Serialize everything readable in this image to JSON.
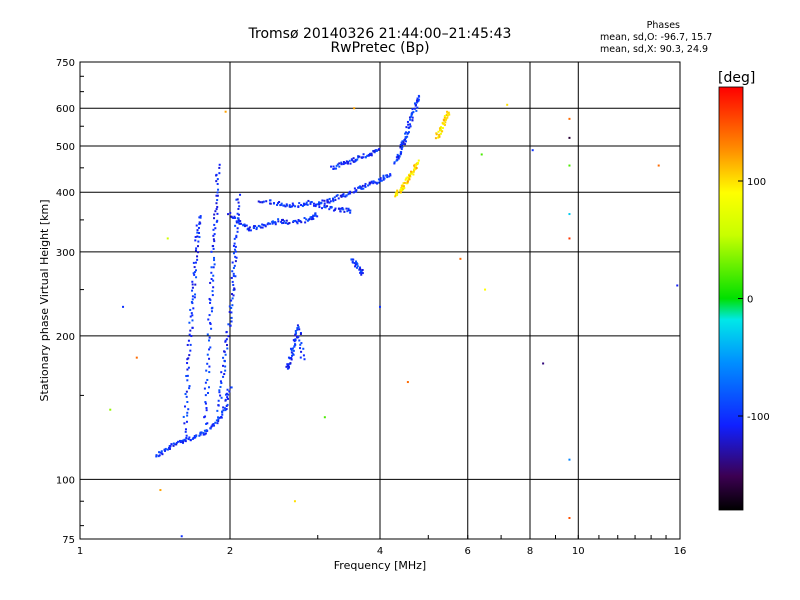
{
  "header": {
    "title_line1": "Tromsø 20140326 21:44:00–21:45:43",
    "title_line2": "RwPretec (Bp)"
  },
  "phase_box": {
    "heading": "Phases",
    "line_o": "mean, sd,O: -96.7, 15.7",
    "line_x": "mean, sd,X:  90.3, 24.9"
  },
  "colorbar": {
    "unit": "[deg]",
    "ticks": [
      "100",
      "0",
      "-100"
    ],
    "range": [
      -180,
      180
    ]
  },
  "chart_data": {
    "type": "scatter",
    "xlabel": "Frequency [MHz]",
    "ylabel": "Stationary phase Virtual Height [km]",
    "xscale": "log",
    "yscale": "log",
    "xlim": [
      1,
      16
    ],
    "ylim": [
      75,
      750
    ],
    "xticks": [
      1,
      2,
      4,
      6,
      8,
      10,
      16
    ],
    "yticks": [
      75,
      100,
      200,
      300,
      400,
      500,
      600,
      750
    ],
    "grid": true,
    "series": [
      {
        "segments": [
          {
            "x": [
              1.42,
              1.5,
              1.58,
              1.68,
              1.78,
              1.88,
              1.96,
              2.0
            ],
            "y": [
              112,
              116,
              120,
              122,
              125,
              132,
              142,
              158
            ]
          },
          {
            "x": [
              1.62,
              1.64,
              1.66,
              1.68,
              1.7,
              1.72,
              1.74
            ],
            "y": [
              120,
              150,
              190,
              230,
              270,
              320,
              360
            ]
          },
          {
            "x": [
              1.78,
              1.8,
              1.82,
              1.84,
              1.86,
              1.88,
              1.9
            ],
            "y": [
              125,
              160,
              210,
              260,
              320,
              380,
              460
            ]
          },
          {
            "x": [
              1.9,
              1.94,
              1.98,
              2.02,
              2.04,
              2.06,
              2.08
            ],
            "y": [
              140,
              170,
              200,
              240,
              280,
              330,
              400
            ]
          },
          {
            "x": [
              2.0,
              2.1,
              2.2,
              2.35,
              2.5,
              2.7,
              2.9,
              3.0
            ],
            "y": [
              360,
              345,
              335,
              340,
              348,
              345,
              352,
              360
            ]
          },
          {
            "x": [
              2.3,
              2.5,
              2.7,
              2.9,
              3.1,
              3.3,
              3.5
            ],
            "y": [
              385,
              378,
              375,
              380,
              372,
              368,
              365
            ]
          },
          {
            "x": [
              3.0,
              3.2,
              3.4,
              3.6,
              3.8,
              4.0,
              4.2
            ],
            "y": [
              380,
              385,
              395,
              405,
              415,
              425,
              435
            ]
          },
          {
            "x": [
              3.2,
              3.4,
              3.6,
              3.8,
              4.0
            ],
            "y": [
              450,
              460,
              470,
              480,
              490
            ]
          },
          {
            "x": [
              4.3,
              4.4,
              4.5,
              4.6,
              4.7,
              4.8
            ],
            "y": [
              460,
              490,
              520,
              560,
              600,
              640
            ]
          },
          {
            "x": [
              2.6,
              2.65,
              2.7,
              2.75,
              2.8
            ],
            "y": [
              170,
              180,
              195,
              210,
              175
            ]
          },
          {
            "x": [
              3.5,
              3.6,
              3.7
            ],
            "y": [
              290,
              280,
              270
            ]
          }
        ],
        "phase": -100
      },
      {
        "segments": [
          {
            "x": [
              4.3,
              4.4,
              4.5,
              4.6,
              4.7,
              4.8
            ],
            "y": [
              395,
              405,
              420,
              435,
              450,
              465
            ]
          },
          {
            "x": [
              5.2,
              5.3,
              5.4,
              5.5
            ],
            "y": [
              520,
              545,
              570,
              590
            ]
          }
        ],
        "phase": 100
      }
    ],
    "stray_points": [
      {
        "x": 1.3,
        "y": 180,
        "phase": 140
      },
      {
        "x": 1.5,
        "y": 320,
        "phase": 60
      },
      {
        "x": 1.45,
        "y": 95,
        "phase": 120
      },
      {
        "x": 1.96,
        "y": 590,
        "phase": 120
      },
      {
        "x": 1.6,
        "y": 76,
        "phase": -100
      },
      {
        "x": 1.22,
        "y": 230,
        "phase": -100
      },
      {
        "x": 1.15,
        "y": 140,
        "phase": 40
      },
      {
        "x": 2.7,
        "y": 90,
        "phase": 100
      },
      {
        "x": 3.1,
        "y": 135,
        "phase": 20
      },
      {
        "x": 3.55,
        "y": 600,
        "phase": 120
      },
      {
        "x": 4.0,
        "y": 230,
        "phase": -100
      },
      {
        "x": 4.55,
        "y": 160,
        "phase": 140
      },
      {
        "x": 5.8,
        "y": 290,
        "phase": 140
      },
      {
        "x": 6.4,
        "y": 480,
        "phase": 20
      },
      {
        "x": 7.2,
        "y": 610,
        "phase": 100
      },
      {
        "x": 8.1,
        "y": 490,
        "phase": -100
      },
      {
        "x": 9.6,
        "y": 570,
        "phase": 140
      },
      {
        "x": 9.6,
        "y": 520,
        "phase": -160
      },
      {
        "x": 9.6,
        "y": 455,
        "phase": 20
      },
      {
        "x": 9.6,
        "y": 360,
        "phase": -30
      },
      {
        "x": 9.6,
        "y": 320,
        "phase": 160
      },
      {
        "x": 9.6,
        "y": 110,
        "phase": -60
      },
      {
        "x": 9.6,
        "y": 83,
        "phase": 150
      },
      {
        "x": 8.5,
        "y": 175,
        "phase": -140
      },
      {
        "x": 14.5,
        "y": 455,
        "phase": 140
      },
      {
        "x": 15.8,
        "y": 255,
        "phase": -110
      },
      {
        "x": 6.5,
        "y": 250,
        "phase": 90
      }
    ]
  }
}
